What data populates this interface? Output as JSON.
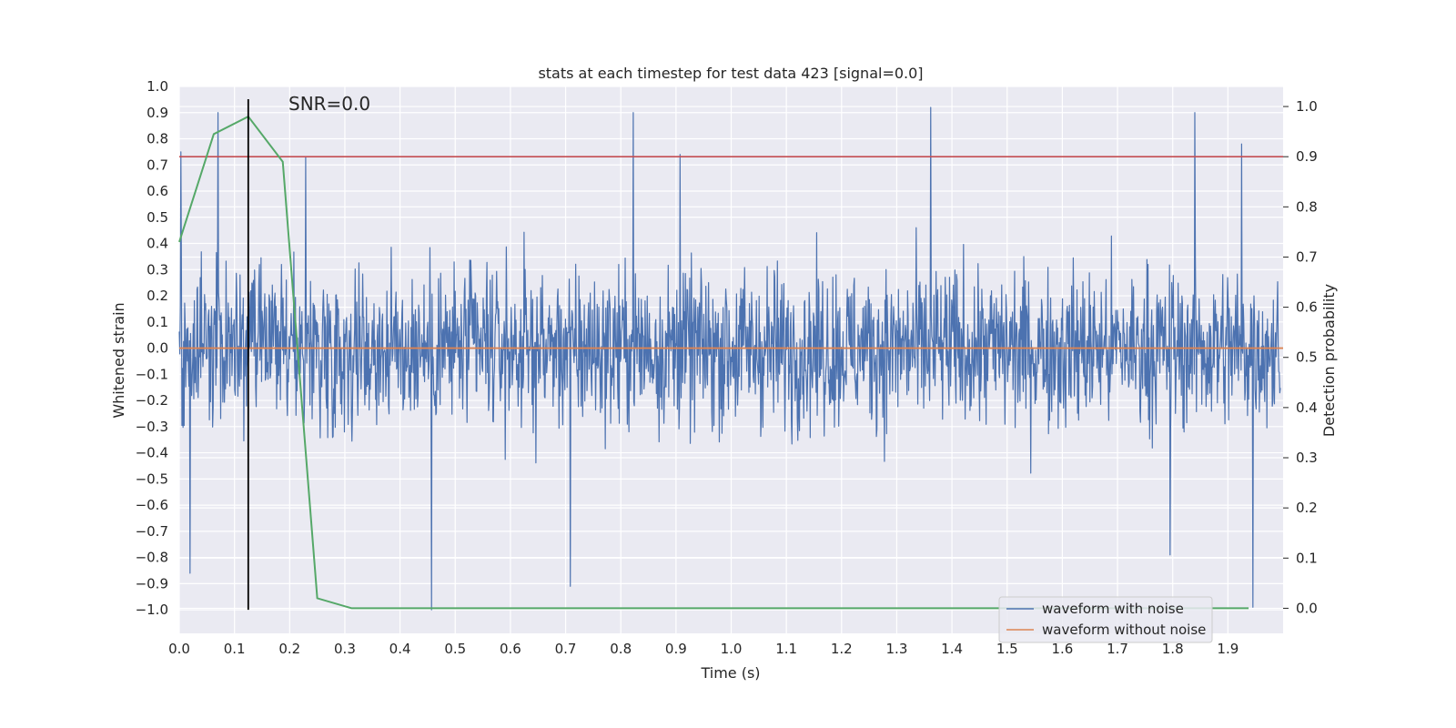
{
  "chart_data": {
    "type": "line",
    "title": "stats at each timestep for test data 423 [signal=0.0]",
    "xlabel": "Time (s)",
    "ylabel": "Whitened strain",
    "y2label": "Detection probability",
    "xlim": [
      0.0,
      2.0
    ],
    "ylim": [
      -1.09,
      1.0
    ],
    "y2lim": [
      -0.05,
      1.04
    ],
    "xticks": [
      "0.0",
      "0.1",
      "0.2",
      "0.3",
      "0.4",
      "0.5",
      "0.6",
      "0.7",
      "0.8",
      "0.9",
      "1.0",
      "1.1",
      "1.2",
      "1.3",
      "1.4",
      "1.5",
      "1.6",
      "1.7",
      "1.8",
      "1.9"
    ],
    "yticks": [
      "1.0",
      "0.9",
      "0.8",
      "0.7",
      "0.6",
      "0.5",
      "0.4",
      "0.3",
      "0.2",
      "0.1",
      "0.0",
      "−0.1",
      "−0.2",
      "−0.3",
      "−0.4",
      "−0.5",
      "−0.6",
      "−0.7",
      "−0.8",
      "−0.9",
      "−1.0"
    ],
    "y2ticks": [
      "1.0",
      "0.9",
      "0.8",
      "0.7",
      "0.6",
      "0.5",
      "0.4",
      "0.3",
      "0.2",
      "0.1",
      "0.0"
    ],
    "grid": true,
    "legend_position": "lower-right",
    "annotation": "SNR=0.0",
    "series": [
      {
        "name": "waveform with noise",
        "color": "#4c72b0",
        "axis": "left",
        "note_values": "dense noise trace, approx 2048 samples between -1.0 and 0.92; key extremes listed",
        "peaks": [
          {
            "x": 0.003,
            "y": 0.75
          },
          {
            "x": 0.02,
            "y": -0.86
          },
          {
            "x": 0.07,
            "y": 0.9
          },
          {
            "x": 0.23,
            "y": 0.73
          },
          {
            "x": 0.458,
            "y": -1.0
          },
          {
            "x": 0.71,
            "y": -0.91
          },
          {
            "x": 0.825,
            "y": 0.9
          },
          {
            "x": 0.91,
            "y": 0.74
          },
          {
            "x": 1.365,
            "y": 0.92
          },
          {
            "x": 1.845,
            "y": 0.9
          },
          {
            "x": 1.8,
            "y": -0.79
          },
          {
            "x": 1.95,
            "y": -0.99
          },
          {
            "x": 1.93,
            "y": 0.78
          }
        ]
      },
      {
        "name": "waveform without noise",
        "color": "#dd8452",
        "axis": "left",
        "x": [
          0.0,
          2.0
        ],
        "y": [
          0.0,
          0.0
        ]
      },
      {
        "name": "",
        "color": "#55a868",
        "axis": "right",
        "x": [
          0.0,
          0.0625,
          0.125,
          0.1875,
          0.25,
          0.3125,
          1.9375
        ],
        "y": [
          0.73,
          0.945,
          0.98,
          0.89,
          0.02,
          0.0,
          0.0
        ]
      }
    ],
    "threshold_line": {
      "color": "#c44e52",
      "axis": "right",
      "value": 0.9
    },
    "marker_line": {
      "color": "#000000",
      "x": 0.125
    }
  }
}
